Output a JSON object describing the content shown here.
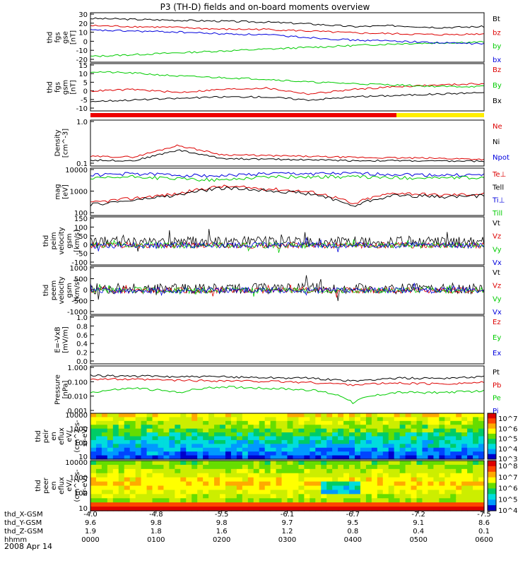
{
  "title": "P3 (TH-D) fields and on-board moments overview",
  "date": "2008 Apr 14",
  "chart_data": [
    {
      "type": "line",
      "ylabel": [
        "thd",
        "fgs",
        "gse",
        "[nT]"
      ],
      "yticks": [
        "30",
        "20",
        "10",
        "0",
        "-10",
        "-20"
      ],
      "ylim": [
        -20,
        30
      ],
      "series": [
        {
          "name": "Bt",
          "color": "#000000",
          "values": [
            26,
            25,
            24,
            23,
            22,
            20,
            17,
            18,
            16,
            17
          ]
        },
        {
          "name": "bz",
          "color": "#dd0000",
          "values": [
            18,
            17,
            16,
            14,
            14,
            12,
            10,
            9,
            8,
            9
          ]
        },
        {
          "name": "by",
          "color": "#00cc00",
          "values": [
            -16,
            -14,
            -12,
            -10,
            -8,
            -6,
            -4,
            -2,
            -1,
            0
          ]
        },
        {
          "name": "bx",
          "color": "#0000dd",
          "values": [
            13,
            12,
            11,
            9,
            8,
            5,
            2,
            1,
            -1,
            -2
          ]
        }
      ]
    },
    {
      "type": "line",
      "ylabel": [
        "thd",
        "fgs",
        "gsm",
        "[nT]"
      ],
      "yticks": [
        "15",
        "10",
        "5",
        "0",
        "-5",
        "-10"
      ],
      "ylim": [
        -13,
        16
      ],
      "series": [
        {
          "name": "Bz",
          "color": "#dd0000",
          "values": [
            -1,
            0,
            -2,
            0,
            1,
            -3,
            0,
            2,
            3,
            4
          ]
        },
        {
          "name": "By",
          "color": "#00cc00",
          "values": [
            12,
            11,
            9,
            8,
            7,
            5,
            4,
            3,
            2,
            2
          ]
        },
        {
          "name": "Bx",
          "color": "#000000",
          "values": [
            -8,
            -7,
            -6,
            -5,
            -5,
            -7,
            -5,
            -4,
            -3,
            -2
          ]
        }
      ]
    },
    {
      "type": "line",
      "ylabel": [
        "Density",
        "[cm^-3]"
      ],
      "yticks": [
        "1.0",
        "0.1"
      ],
      "ylim": [
        0.1,
        1.0
      ],
      "series": [
        {
          "name": "Ne",
          "color": "#dd0000",
          "values": [
            0.26,
            0.25,
            0.5,
            0.3,
            0.28,
            0.26,
            0.24,
            0.23,
            0.22,
            0.2
          ]
        },
        {
          "name": "Ni",
          "color": "#000000",
          "values": [
            0.18,
            0.17,
            0.4,
            0.22,
            0.2,
            0.19,
            0.17,
            0.17,
            0.16,
            0.16
          ]
        },
        {
          "name": "Npot",
          "color": "#0000dd",
          "values": []
        }
      ]
    },
    {
      "type": "line",
      "ylabel": [
        "mag",
        "[eV]"
      ],
      "yticks": [
        "10000",
        "1000",
        "100"
      ],
      "ylim": [
        100,
        10000
      ],
      "series": [
        {
          "name": "Te⊥",
          "color": "#dd0000",
          "values": [
            300,
            500,
            800,
            1800,
            1400,
            1000,
            250,
            900,
            700,
            800
          ]
        },
        {
          "name": "Tell",
          "color": "#000000",
          "values": [
            250,
            400,
            700,
            1500,
            1200,
            800,
            200,
            700,
            600,
            650
          ]
        },
        {
          "name": "Ti⊥",
          "color": "#0000dd",
          "values": [
            6000,
            7000,
            6000,
            5500,
            7000,
            7000,
            7000,
            6500,
            6000,
            6000
          ]
        },
        {
          "name": "Till",
          "color": "#00cc00",
          "values": [
            4000,
            5000,
            4000,
            3500,
            5000,
            5000,
            5000,
            4500,
            4500,
            4500
          ]
        }
      ]
    },
    {
      "type": "line",
      "ylabel": [
        "thd",
        "peim",
        "velocity",
        "gsm",
        "[km/s]"
      ],
      "yticks": [
        "150",
        "100",
        "50",
        "0",
        "-50",
        "-100"
      ],
      "ylim": [
        -100,
        150
      ],
      "series": [
        {
          "name": "Vt",
          "color": "#000000"
        },
        {
          "name": "Vz",
          "color": "#dd0000"
        },
        {
          "name": "Vy",
          "color": "#00cc00"
        },
        {
          "name": "Vx",
          "color": "#0000dd"
        }
      ]
    },
    {
      "type": "line",
      "ylabel": [
        "thd",
        "peem",
        "velocity",
        "gsm",
        "[km/s]"
      ],
      "yticks": [
        "1000",
        "500",
        "0",
        "-500",
        "-1000"
      ],
      "ylim": [
        -1000,
        1000
      ],
      "series": [
        {
          "name": "Vt",
          "color": "#000000"
        },
        {
          "name": "Vz",
          "color": "#dd0000"
        },
        {
          "name": "Vy",
          "color": "#00cc00"
        },
        {
          "name": "Vx",
          "color": "#0000dd"
        }
      ]
    },
    {
      "type": "line",
      "ylabel": [
        "E=-VxB",
        "[mV/m]"
      ],
      "yticks": [
        "1.0",
        "0.8",
        "0.6",
        "0.4",
        "0.2",
        "0.0"
      ],
      "ylim": [
        0,
        1
      ],
      "series": [
        {
          "name": "Ez",
          "color": "#dd0000"
        },
        {
          "name": "Ey",
          "color": "#00cc00"
        },
        {
          "name": "Ex",
          "color": "#0000dd"
        }
      ]
    },
    {
      "type": "line",
      "ylabel": [
        "Pressure",
        "[nPa]"
      ],
      "yticks": [
        "1.000",
        "0.100",
        "0.010",
        "0.001"
      ],
      "ylim": [
        0.001,
        1
      ],
      "series": [
        {
          "name": "Pt",
          "color": "#000000",
          "values": [
            0.3,
            0.28,
            0.25,
            0.25,
            0.22,
            0.2,
            0.12,
            0.2,
            0.2,
            0.25
          ]
        },
        {
          "name": "Pb",
          "color": "#dd0000",
          "values": [
            0.18,
            0.16,
            0.14,
            0.13,
            0.12,
            0.1,
            0.07,
            0.09,
            0.08,
            0.1
          ]
        },
        {
          "name": "Pe",
          "color": "#00cc00",
          "values": [
            0.02,
            0.04,
            0.02,
            0.05,
            0.04,
            0.03,
            0.004,
            0.02,
            0.02,
            0.025
          ]
        },
        {
          "name": "Pi",
          "color": "#0000dd",
          "values": []
        }
      ]
    },
    {
      "type": "heatmap",
      "ylabel": [
        "thd",
        "peir",
        "en",
        "eflux",
        "eV/",
        "(cm^2-s-",
        "sr-eV)"
      ],
      "yticks": [
        "10000",
        "1000",
        "100",
        "10"
      ],
      "colorbar": [
        "10^7",
        "10^6",
        "10^5",
        "10^4",
        "10^3"
      ]
    },
    {
      "type": "heatmap",
      "ylabel": [
        "thd",
        "peer",
        "en",
        "eflux",
        "eV/",
        "(cm^2-s-",
        "sr-eV)"
      ],
      "yticks": [
        "10000",
        "1000",
        "100",
        "10"
      ],
      "colorbar": [
        "10^8",
        "10^7",
        "10^6",
        "10^5",
        "10^4"
      ]
    }
  ],
  "footer": {
    "labels": [
      "thd_X-GSM",
      "thd_Y-GSM",
      "thd_Z-GSM",
      "hhmm"
    ],
    "columns": [
      [
        "-4.0",
        "9.6",
        "1.9",
        "0000"
      ],
      [
        "-4.8",
        "9.8",
        "1.8",
        "0100"
      ],
      [
        "-5.5",
        "9.8",
        "1.6",
        "0200"
      ],
      [
        "-6.1",
        "9.7",
        "1.2",
        "0300"
      ],
      [
        "-6.7",
        "9.5",
        "0.8",
        "0400"
      ],
      [
        "-7.2",
        "9.1",
        "0.4",
        "0500"
      ],
      [
        "-7.5",
        "8.6",
        "0.1",
        "0600"
      ]
    ]
  }
}
